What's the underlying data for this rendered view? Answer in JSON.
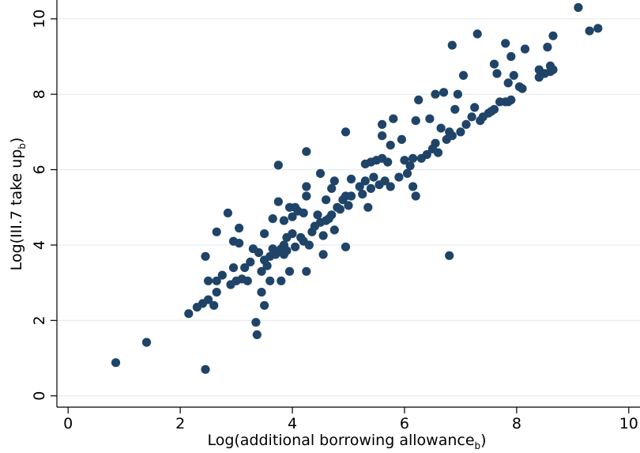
{
  "chart_data": {
    "type": "scatter",
    "title": "",
    "xlabel": "Log(additional borrowing allowance",
    "xlabel_subscript": "b",
    "xlabel_close": ")",
    "ylabel": "Log(III.7 take up",
    "ylabel_subscript": "b",
    "ylabel_close": ")",
    "xlim": [
      -0.2,
      10.2
    ],
    "ylim": [
      -0.3,
      10.5
    ],
    "xticks": [
      0,
      2,
      4,
      6,
      8,
      10
    ],
    "yticks": [
      0,
      2,
      4,
      6,
      8,
      10
    ],
    "grid": true,
    "colors": {
      "marker": "#1f4468",
      "grid": "#e8edf1",
      "axis": "#000000"
    },
    "points": [
      [
        0.85,
        0.88
      ],
      [
        1.4,
        1.42
      ],
      [
        2.45,
        0.7
      ],
      [
        2.15,
        2.18
      ],
      [
        2.3,
        2.35
      ],
      [
        2.4,
        2.45
      ],
      [
        2.5,
        2.55
      ],
      [
        2.45,
        3.7
      ],
      [
        2.5,
        3.05
      ],
      [
        2.6,
        2.4
      ],
      [
        2.65,
        2.75
      ],
      [
        2.65,
        3.05
      ],
      [
        2.65,
        4.35
      ],
      [
        2.75,
        3.2
      ],
      [
        2.85,
        4.85
      ],
      [
        2.9,
        2.95
      ],
      [
        2.95,
        3.4
      ],
      [
        3.0,
        3.05
      ],
      [
        2.95,
        4.1
      ],
      [
        3.05,
        4.45
      ],
      [
        3.05,
        4.05
      ],
      [
        3.1,
        3.1
      ],
      [
        3.15,
        3.4
      ],
      [
        3.2,
        3.05
      ],
      [
        3.25,
        3.55
      ],
      [
        3.3,
        3.9
      ],
      [
        3.35,
        1.95
      ],
      [
        3.37,
        1.62
      ],
      [
        3.4,
        3.8
      ],
      [
        3.45,
        2.75
      ],
      [
        3.45,
        3.3
      ],
      [
        3.5,
        3.6
      ],
      [
        3.5,
        2.4
      ],
      [
        3.5,
        4.3
      ],
      [
        3.55,
        3.45
      ],
      [
        3.6,
        3.7
      ],
      [
        3.6,
        3.05
      ],
      [
        3.65,
        4.7
      ],
      [
        3.65,
        3.9
      ],
      [
        3.7,
        3.75
      ],
      [
        3.75,
        6.12
      ],
      [
        3.75,
        5.15
      ],
      [
        3.8,
        3.9
      ],
      [
        3.8,
        3.05
      ],
      [
        3.85,
        4.0
      ],
      [
        3.85,
        3.75
      ],
      [
        3.85,
        4.65
      ],
      [
        3.9,
        3.85
      ],
      [
        3.9,
        4.2
      ],
      [
        3.95,
        3.3
      ],
      [
        3.95,
        5.0
      ],
      [
        4.0,
        4.3
      ],
      [
        4.0,
        4.75
      ],
      [
        4.05,
        3.95
      ],
      [
        4.05,
        5.0
      ],
      [
        4.1,
        4.9
      ],
      [
        4.15,
        4.2
      ],
      [
        4.2,
        4.1
      ],
      [
        4.2,
        4.85
      ],
      [
        4.25,
        3.3
      ],
      [
        4.25,
        5.3
      ],
      [
        4.25,
        5.55
      ],
      [
        4.25,
        6.48
      ],
      [
        4.3,
        4.0
      ],
      [
        4.35,
        4.35
      ],
      [
        4.4,
        4.5
      ],
      [
        4.45,
        4.8
      ],
      [
        4.5,
        4.6
      ],
      [
        4.5,
        5.9
      ],
      [
        4.55,
        3.75
      ],
      [
        4.55,
        4.25
      ],
      [
        4.6,
        4.65
      ],
      [
        4.6,
        5.2
      ],
      [
        4.65,
        4.7
      ],
      [
        4.7,
        4.8
      ],
      [
        4.7,
        5.5
      ],
      [
        4.75,
        4.4
      ],
      [
        4.75,
        5.7
      ],
      [
        4.8,
        5.0
      ],
      [
        4.85,
        4.95
      ],
      [
        4.9,
        5.2
      ],
      [
        4.95,
        3.95
      ],
      [
        4.95,
        5.3
      ],
      [
        4.95,
        7.0
      ],
      [
        5.0,
        5.05
      ],
      [
        5.05,
        5.3
      ],
      [
        5.05,
        5.75
      ],
      [
        5.2,
        5.55
      ],
      [
        5.25,
        5.35
      ],
      [
        5.3,
        5.7
      ],
      [
        5.3,
        6.15
      ],
      [
        5.35,
        5.0
      ],
      [
        5.4,
        5.5
      ],
      [
        5.4,
        6.2
      ],
      [
        5.45,
        5.8
      ],
      [
        5.5,
        6.25
      ],
      [
        5.55,
        5.6
      ],
      [
        5.6,
        7.2
      ],
      [
        5.6,
        6.9
      ],
      [
        5.6,
        6.3
      ],
      [
        5.65,
        5.7
      ],
      [
        5.7,
        6.2
      ],
      [
        5.75,
        5.55
      ],
      [
        5.75,
        6.65
      ],
      [
        5.8,
        7.35
      ],
      [
        5.9,
        5.8
      ],
      [
        5.95,
        6.8
      ],
      [
        6.0,
        6.25
      ],
      [
        6.05,
        5.9
      ],
      [
        6.1,
        6.1
      ],
      [
        6.15,
        5.55
      ],
      [
        6.15,
        6.3
      ],
      [
        6.2,
        5.3
      ],
      [
        6.2,
        7.3
      ],
      [
        6.25,
        7.85
      ],
      [
        6.3,
        6.3
      ],
      [
        6.4,
        6.4
      ],
      [
        6.45,
        7.35
      ],
      [
        6.5,
        6.55
      ],
      [
        6.55,
        6.7
      ],
      [
        6.55,
        8.0
      ],
      [
        6.6,
        6.45
      ],
      [
        6.65,
        7.1
      ],
      [
        6.7,
        8.05
      ],
      [
        6.75,
        6.8
      ],
      [
        6.8,
        3.72
      ],
      [
        6.8,
        7.0
      ],
      [
        6.85,
        6.9
      ],
      [
        6.85,
        9.3
      ],
      [
        6.9,
        7.6
      ],
      [
        6.95,
        8.0
      ],
      [
        7.0,
        7.0
      ],
      [
        7.05,
        8.5
      ],
      [
        7.1,
        7.2
      ],
      [
        7.2,
        7.4
      ],
      [
        7.25,
        7.65
      ],
      [
        7.3,
        9.6
      ],
      [
        7.35,
        7.3
      ],
      [
        7.4,
        7.4
      ],
      [
        7.5,
        7.5
      ],
      [
        7.55,
        7.55
      ],
      [
        7.6,
        7.6
      ],
      [
        7.6,
        8.8
      ],
      [
        7.65,
        8.55
      ],
      [
        7.7,
        7.8
      ],
      [
        7.8,
        9.35
      ],
      [
        7.8,
        7.8
      ],
      [
        7.85,
        8.3
      ],
      [
        7.85,
        7.8
      ],
      [
        7.9,
        9.0
      ],
      [
        7.9,
        7.85
      ],
      [
        7.95,
        8.5
      ],
      [
        8.05,
        8.2
      ],
      [
        8.1,
        8.15
      ],
      [
        8.15,
        9.2
      ],
      [
        8.4,
        8.45
      ],
      [
        8.4,
        8.65
      ],
      [
        8.5,
        8.55
      ],
      [
        8.55,
        9.25
      ],
      [
        8.6,
        8.6
      ],
      [
        8.6,
        8.75
      ],
      [
        8.65,
        8.65
      ],
      [
        8.65,
        9.55
      ],
      [
        9.1,
        10.3
      ],
      [
        9.3,
        9.68
      ],
      [
        9.45,
        9.75
      ]
    ]
  }
}
